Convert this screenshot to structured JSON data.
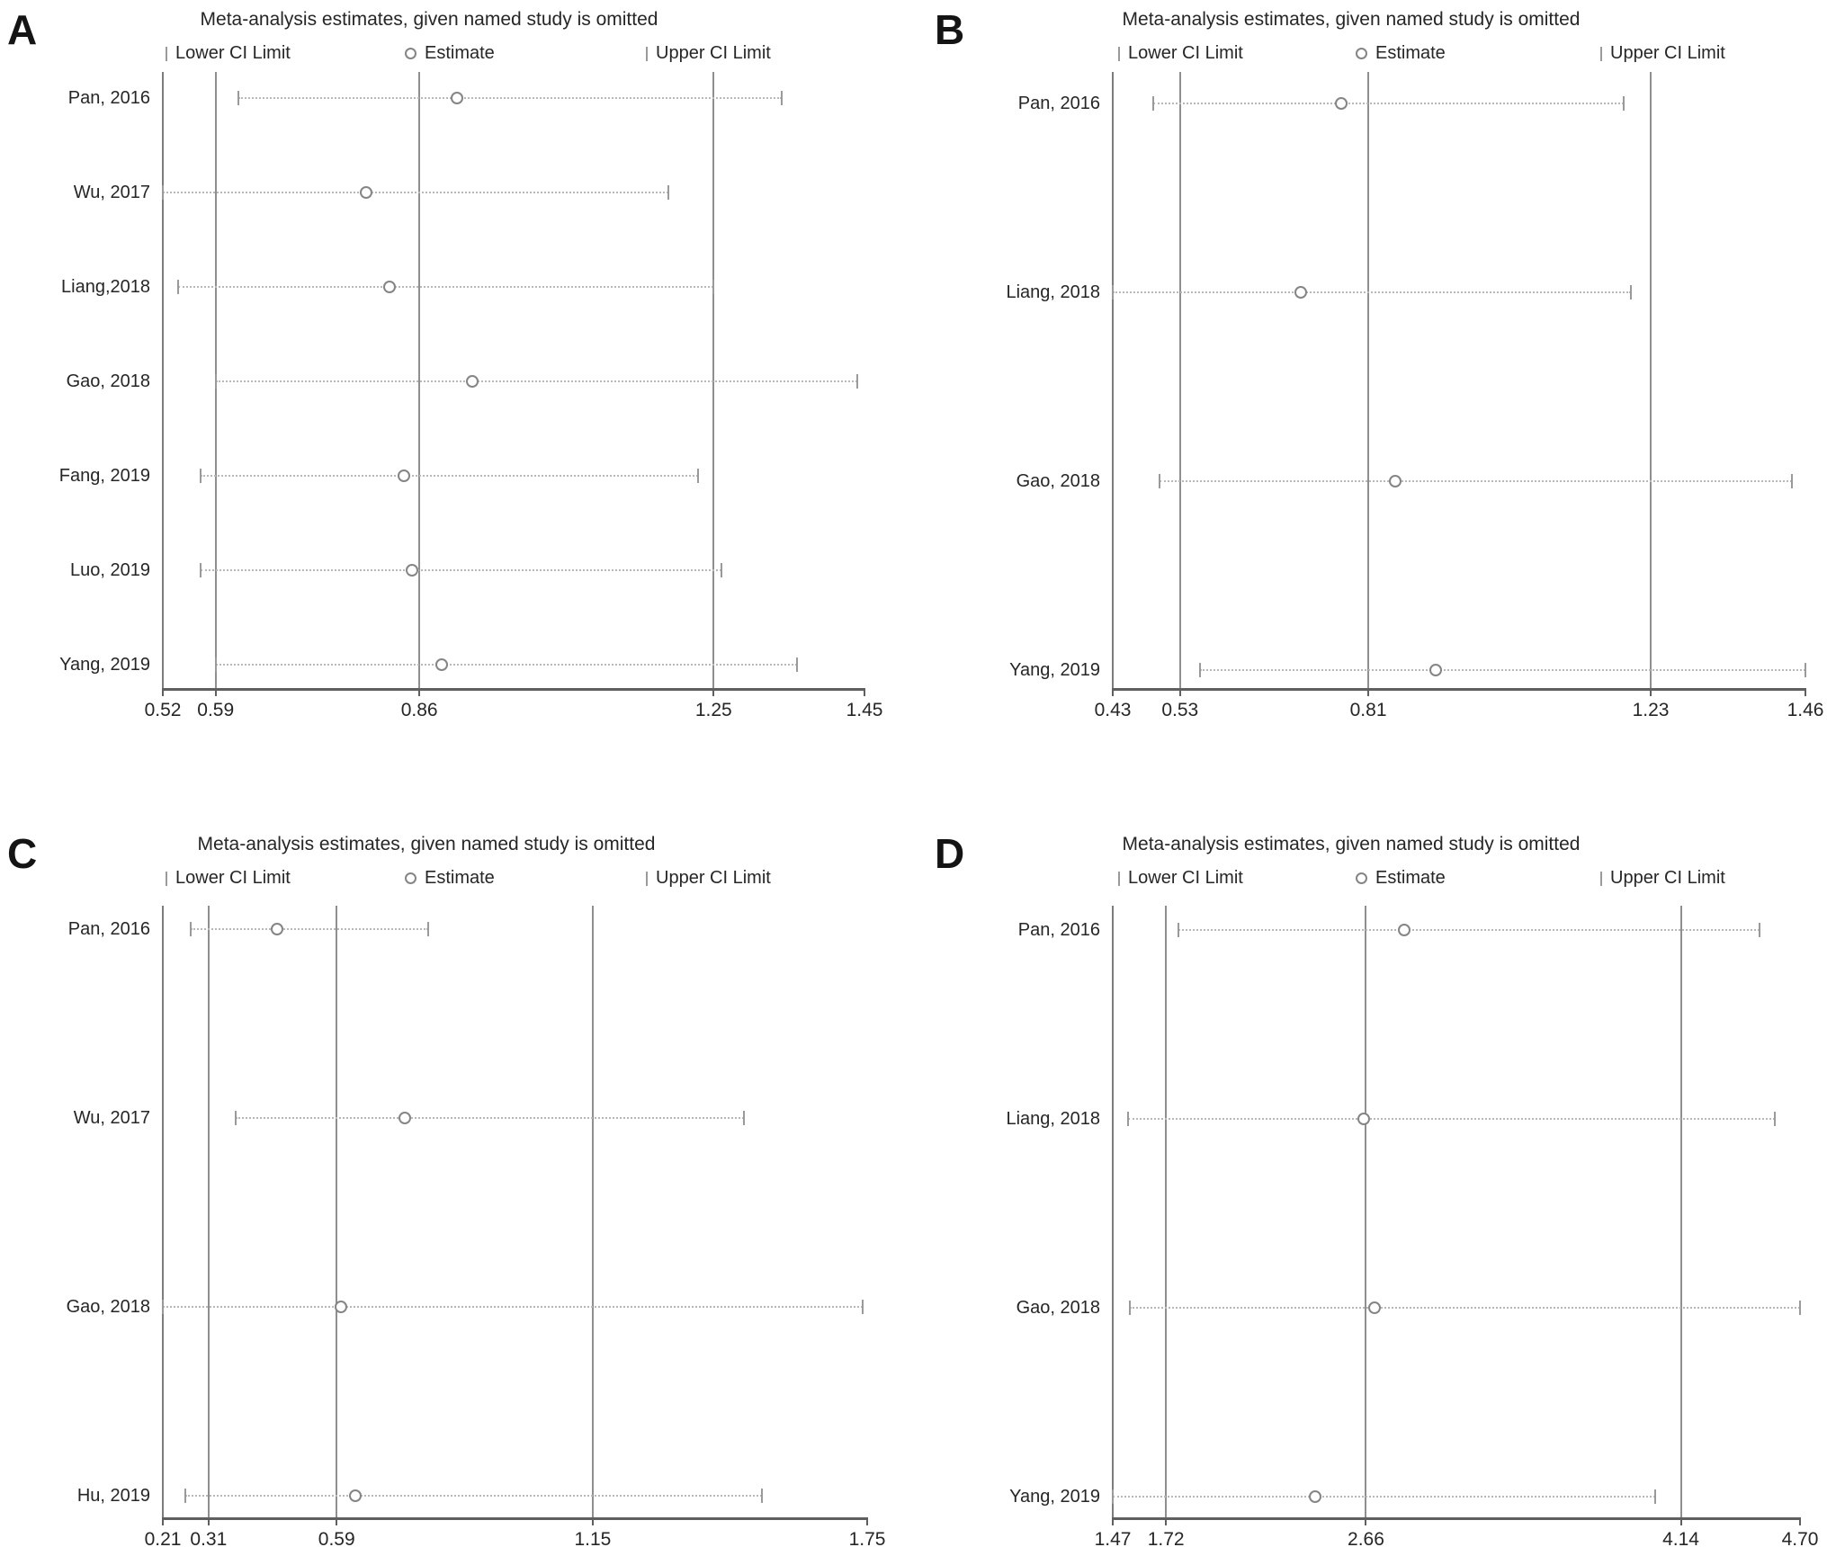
{
  "colors": {
    "background": "#ffffff",
    "text": "#262626",
    "axis_line": "#5f5f5f",
    "ref_line": "#8f8f8f",
    "ci_dotted_line": "#b8b8b8",
    "ci_end_tick": "#9a9a9a",
    "marker_outline": "#858585"
  },
  "chart_data": [
    {
      "type": "scatter",
      "subtype": "leave-one-out-sensitivity-forest",
      "panel_label": "A",
      "title": "Meta-analysis estimates, given named study is omitted",
      "legend": {
        "lower": "Lower CI Limit",
        "estimate": "Estimate",
        "upper": "Upper CI Limit"
      },
      "x_axis": {
        "min": 0.52,
        "max": 1.45,
        "ticks": [
          {
            "value": 0.52,
            "label": "0.52"
          },
          {
            "value": 0.59,
            "label": "0.59"
          },
          {
            "value": 0.86,
            "label": "0.86"
          },
          {
            "value": 1.25,
            "label": "1.25"
          },
          {
            "value": 1.45,
            "label": "1.45"
          }
        ]
      },
      "ref_lines": [
        0.59,
        0.86,
        1.25
      ],
      "studies": [
        {
          "label": "Pan, 2016",
          "lower": 0.62,
          "estimate": 0.91,
          "upper": 1.34
        },
        {
          "label": "Wu, 2017",
          "lower": 0.52,
          "estimate": 0.79,
          "upper": 1.19
        },
        {
          "label": "Liang,2018",
          "lower": 0.54,
          "estimate": 0.82,
          "upper": 1.25
        },
        {
          "label": "Gao, 2018",
          "lower": 0.59,
          "estimate": 0.93,
          "upper": 1.44
        },
        {
          "label": "Fang, 2019",
          "lower": 0.57,
          "estimate": 0.84,
          "upper": 1.23
        },
        {
          "label": "Luo, 2019",
          "lower": 0.57,
          "estimate": 0.85,
          "upper": 1.26
        },
        {
          "label": "Yang, 2019",
          "lower": 0.59,
          "estimate": 0.89,
          "upper": 1.36
        }
      ]
    },
    {
      "type": "scatter",
      "subtype": "leave-one-out-sensitivity-forest",
      "panel_label": "B",
      "title": "Meta-analysis estimates, given named study is omitted",
      "legend": {
        "lower": "Lower CI Limit",
        "estimate": "Estimate",
        "upper": "Upper CI Limit"
      },
      "x_axis": {
        "min": 0.43,
        "max": 1.46,
        "ticks": [
          {
            "value": 0.43,
            "label": "0.43"
          },
          {
            "value": 0.53,
            "label": "0.53"
          },
          {
            "value": 0.81,
            "label": "0.81"
          },
          {
            "value": 1.23,
            "label": "1.23"
          },
          {
            "value": 1.46,
            "label": "1.46"
          }
        ]
      },
      "ref_lines": [
        0.53,
        0.81,
        1.23
      ],
      "studies": [
        {
          "label": "Pan, 2016",
          "lower": 0.49,
          "estimate": 0.77,
          "upper": 1.19
        },
        {
          "label": "Liang, 2018",
          "lower": 0.43,
          "estimate": 0.71,
          "upper": 1.2
        },
        {
          "label": "Gao, 2018",
          "lower": 0.5,
          "estimate": 0.85,
          "upper": 1.44
        },
        {
          "label": "Yang, 2019",
          "lower": 0.56,
          "estimate": 0.91,
          "upper": 1.46
        }
      ]
    },
    {
      "type": "scatter",
      "subtype": "leave-one-out-sensitivity-forest",
      "panel_label": "C",
      "title": "Meta-analysis estimates, given named study is omitted",
      "legend": {
        "lower": "Lower CI Limit",
        "estimate": "Estimate",
        "upper": "Upper CI Limit"
      },
      "x_axis": {
        "min": 0.21,
        "max": 1.75,
        "ticks": [
          {
            "value": 0.21,
            "label": "0.21"
          },
          {
            "value": 0.31,
            "label": "0.31"
          },
          {
            "value": 0.59,
            "label": "0.59"
          },
          {
            "value": 1.15,
            "label": "1.15"
          },
          {
            "value": 1.75,
            "label": "1.75"
          }
        ]
      },
      "ref_lines": [
        0.31,
        0.59,
        1.15
      ],
      "studies": [
        {
          "label": "Pan, 2016",
          "lower": 0.27,
          "estimate": 0.46,
          "upper": 0.79
        },
        {
          "label": "Wu, 2017",
          "lower": 0.37,
          "estimate": 0.74,
          "upper": 1.48
        },
        {
          "label": "Gao, 2018",
          "lower": 0.21,
          "estimate": 0.6,
          "upper": 1.74
        },
        {
          "label": "Hu, 2019",
          "lower": 0.26,
          "estimate": 0.63,
          "upper": 1.52
        }
      ]
    },
    {
      "type": "scatter",
      "subtype": "leave-one-out-sensitivity-forest",
      "panel_label": "D",
      "title": "Meta-analysis estimates, given named study is omitted",
      "legend": {
        "lower": "Lower CI Limit",
        "estimate": "Estimate",
        "upper": "Upper CI Limit"
      },
      "x_axis": {
        "min": 1.47,
        "max": 4.7,
        "ticks": [
          {
            "value": 1.47,
            "label": "1.47"
          },
          {
            "value": 1.72,
            "label": "1.72"
          },
          {
            "value": 2.66,
            "label": "2.66"
          },
          {
            "value": 4.14,
            "label": "4.14"
          },
          {
            "value": 4.7,
            "label": "4.70"
          }
        ]
      },
      "ref_lines": [
        1.72,
        2.66,
        4.14
      ],
      "studies": [
        {
          "label": "Pan, 2016",
          "lower": 1.78,
          "estimate": 2.84,
          "upper": 4.51
        },
        {
          "label": "Liang, 2018",
          "lower": 1.54,
          "estimate": 2.65,
          "upper": 4.58
        },
        {
          "label": "Gao, 2018",
          "lower": 1.55,
          "estimate": 2.7,
          "upper": 4.7
        },
        {
          "label": "Yang, 2019",
          "lower": 1.47,
          "estimate": 2.42,
          "upper": 4.02
        }
      ]
    }
  ]
}
